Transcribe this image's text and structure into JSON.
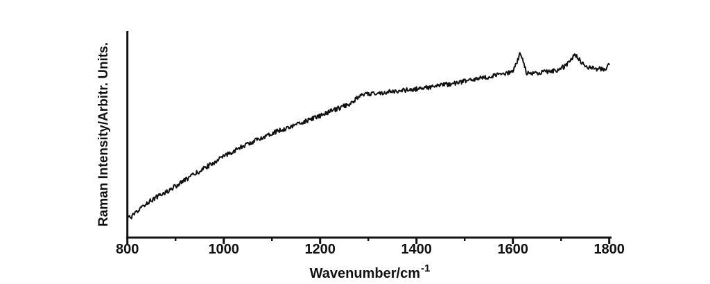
{
  "chart_data": {
    "type": "line",
    "title": "",
    "xlabel_base": "Wavenumber/cm",
    "xlabel_exponent": "-1",
    "ylabel": "Raman Intensity/Arbitr. Units.",
    "xlim": [
      800,
      1800
    ],
    "ylim": [
      0,
      1
    ],
    "x_major_ticks": [
      800,
      1000,
      1200,
      1400,
      1600,
      1800
    ],
    "x_minor_ticks": [
      900,
      1100,
      1300,
      1500,
      1700
    ],
    "y_ticks": [],
    "grid": false,
    "legend": false,
    "axis_color": "#111111",
    "line_color": "#111111",
    "background_color": "#ffffff",
    "peaks_cm1": [
      1615,
      1731
    ],
    "series": [
      {
        "name": "raman-spectrum",
        "noise_amplitude": 0.011,
        "points": [
          [
            800,
            0.106
          ],
          [
            806,
            0.097
          ],
          [
            814,
            0.11
          ],
          [
            838,
            0.164
          ],
          [
            860,
            0.196
          ],
          [
            881,
            0.221
          ],
          [
            902,
            0.252
          ],
          [
            924,
            0.285
          ],
          [
            945,
            0.315
          ],
          [
            967,
            0.346
          ],
          [
            988,
            0.376
          ],
          [
            1010,
            0.406
          ],
          [
            1031,
            0.432
          ],
          [
            1053,
            0.456
          ],
          [
            1075,
            0.48
          ],
          [
            1096,
            0.503
          ],
          [
            1118,
            0.521
          ],
          [
            1139,
            0.537
          ],
          [
            1160,
            0.556
          ],
          [
            1182,
            0.574
          ],
          [
            1203,
            0.593
          ],
          [
            1225,
            0.614
          ],
          [
            1247,
            0.635
          ],
          [
            1261,
            0.648
          ],
          [
            1272,
            0.668
          ],
          [
            1280,
            0.682
          ],
          [
            1297,
            0.695
          ],
          [
            1319,
            0.7
          ],
          [
            1340,
            0.705
          ],
          [
            1362,
            0.71
          ],
          [
            1383,
            0.715
          ],
          [
            1405,
            0.721
          ],
          [
            1426,
            0.728
          ],
          [
            1448,
            0.736
          ],
          [
            1469,
            0.745
          ],
          [
            1491,
            0.753
          ],
          [
            1513,
            0.762
          ],
          [
            1541,
            0.775
          ],
          [
            1570,
            0.789
          ],
          [
            1592,
            0.799
          ],
          [
            1601,
            0.812
          ],
          [
            1607,
            0.838
          ],
          [
            1612,
            0.875
          ],
          [
            1615,
            0.893
          ],
          [
            1618,
            0.875
          ],
          [
            1623,
            0.84
          ],
          [
            1628,
            0.8
          ],
          [
            1634,
            0.792
          ],
          [
            1642,
            0.795
          ],
          [
            1656,
            0.8
          ],
          [
            1670,
            0.803
          ],
          [
            1685,
            0.808
          ],
          [
            1699,
            0.818
          ],
          [
            1709,
            0.832
          ],
          [
            1717,
            0.852
          ],
          [
            1724,
            0.872
          ],
          [
            1729,
            0.882
          ],
          [
            1733,
            0.88
          ],
          [
            1738,
            0.862
          ],
          [
            1744,
            0.843
          ],
          [
            1752,
            0.83
          ],
          [
            1764,
            0.82
          ],
          [
            1778,
            0.816
          ],
          [
            1790,
            0.818
          ],
          [
            1796,
            0.822
          ],
          [
            1800,
            0.84
          ]
        ]
      }
    ]
  }
}
